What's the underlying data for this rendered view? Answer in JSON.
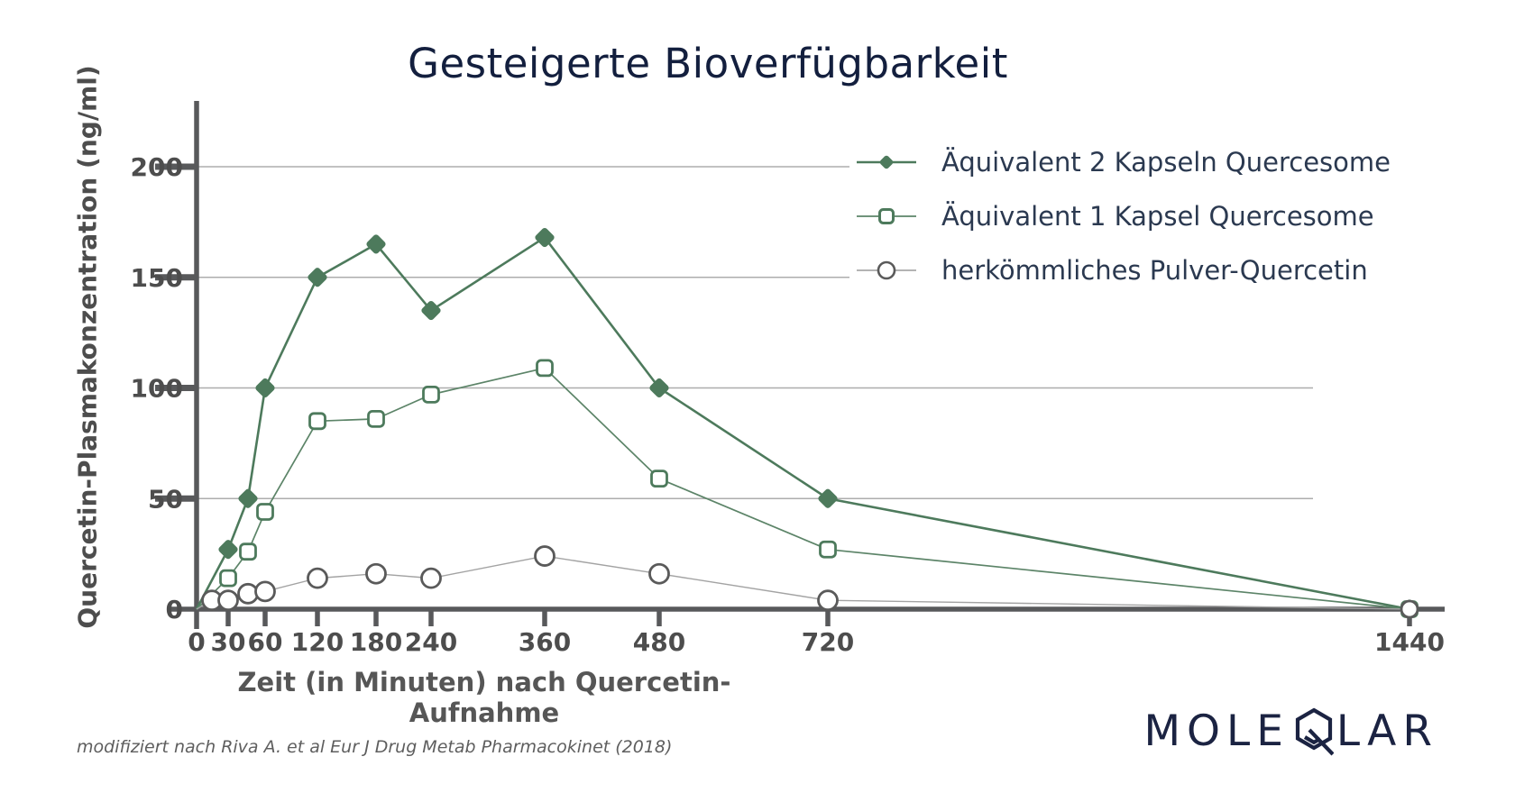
{
  "title": "Gesteigerte Bioverfügbarkeit",
  "chart_data": {
    "type": "line",
    "title": "Gesteigerte Bioverfügbarkeit",
    "xlabel": "Zeit (in Minuten) nach Quercetin-Aufnahme",
    "ylabel": "Quercetin-Plasmakonzentration (ng/ml)",
    "x_ticks": [
      0,
      30,
      60,
      120,
      180,
      240,
      360,
      480,
      720,
      1440
    ],
    "y_ticks": [
      0,
      50,
      100,
      150,
      200
    ],
    "xlim": [
      0,
      1440
    ],
    "ylim": [
      0,
      225
    ],
    "grid": true,
    "legend_position": "top-right",
    "x_axis_note": "time axis tick spacing is non-linear as drawn",
    "series": [
      {
        "name": "Äquivalent 2 Kapseln Quercesome",
        "marker": "diamond-filled",
        "color": "#4d7a5c",
        "line_color": "#4d7a5c",
        "line_width": 2.6,
        "points": [
          [
            0,
            0
          ],
          [
            30,
            27
          ],
          [
            45,
            50
          ],
          [
            60,
            100
          ],
          [
            120,
            150
          ],
          [
            180,
            165
          ],
          [
            240,
            135
          ],
          [
            360,
            168
          ],
          [
            480,
            100
          ],
          [
            720,
            50
          ],
          [
            1440,
            0
          ]
        ]
      },
      {
        "name": "Äquivalent 1 Kapsel Quercesome",
        "marker": "square-open",
        "color": "#4d7a5c",
        "line_color": "#5c8468",
        "line_width": 1.7,
        "points": [
          [
            0,
            0
          ],
          [
            30,
            14
          ],
          [
            45,
            26
          ],
          [
            60,
            44
          ],
          [
            120,
            85
          ],
          [
            180,
            86
          ],
          [
            240,
            97
          ],
          [
            360,
            109
          ],
          [
            480,
            59
          ],
          [
            720,
            27
          ],
          [
            1440,
            0
          ]
        ]
      },
      {
        "name": "herkömmliches Pulver-Quercetin",
        "marker": "circle-open",
        "color": "#5a5a5a",
        "line_color": "#a3a3a3",
        "line_width": 1.4,
        "points": [
          [
            0,
            0
          ],
          [
            15,
            4
          ],
          [
            30,
            4
          ],
          [
            45,
            7
          ],
          [
            60,
            8
          ],
          [
            120,
            14
          ],
          [
            180,
            16
          ],
          [
            240,
            14
          ],
          [
            360,
            24
          ],
          [
            480,
            16
          ],
          [
            720,
            4
          ],
          [
            1440,
            0
          ]
        ]
      }
    ]
  },
  "footer": {
    "citation": "modifiziert nach Riva A. et al Eur J Drug Metab Pharmacokinet (2018)"
  },
  "logo": {
    "pre": "MOLE",
    "post": "LAR"
  },
  "colors": {
    "title_navy": "#131f3e",
    "legend_text": "#2b3950",
    "axis_gray": "#58595b",
    "grid_gray": "#adadad",
    "tick_label_gray": "#4d4d4d",
    "series_green": "#4d7a5c",
    "series_gray": "#5a5a5a",
    "logo_navy": "#1b2342"
  }
}
